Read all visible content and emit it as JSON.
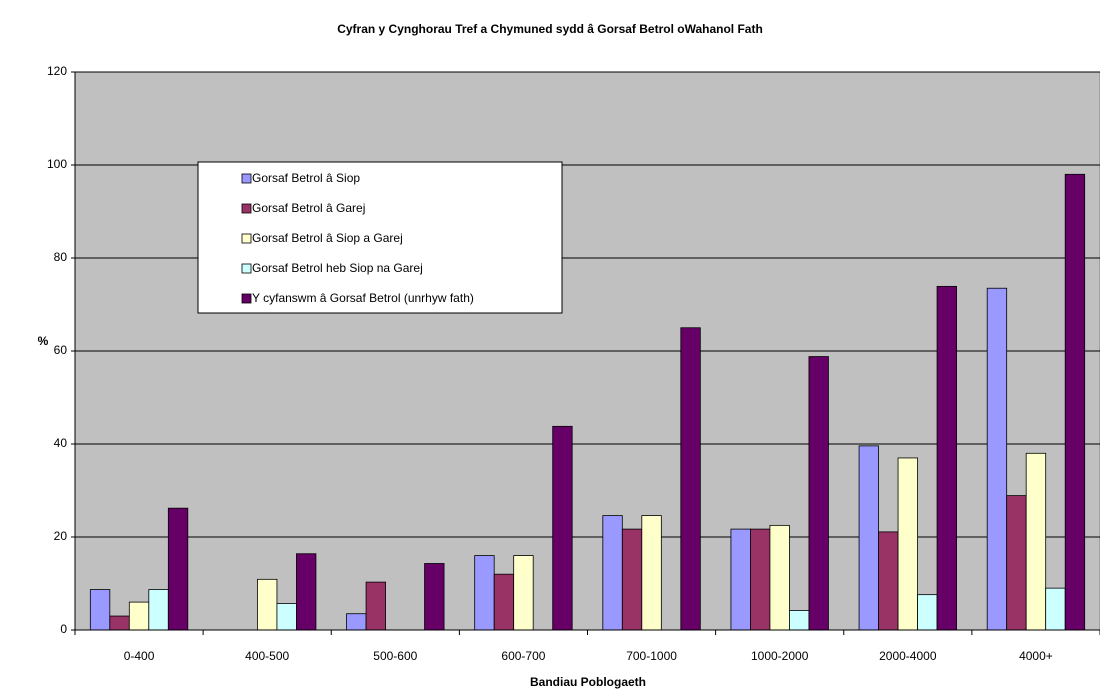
{
  "chart_data": {
    "type": "bar",
    "title": "Cyfran y Cynghorau Tref a Chymuned sydd â Gorsaf Betrol oWahanol Fath",
    "x_label": "Bandiau Poblogaeth",
    "y_label": "%",
    "categories": [
      "0-400",
      "400-500",
      "500-600",
      "600-700",
      "700-1000",
      "1000-2000",
      "2000-4000",
      "4000+"
    ],
    "series": [
      {
        "name": "Gorsaf Betrol â Siop",
        "color": "#9999ff",
        "values": [
          8.7,
          0,
          3.5,
          16,
          24.6,
          21.7,
          39.6,
          73.5
        ]
      },
      {
        "name": "Gorsaf Betrol â Garej",
        "color": "#993366",
        "values": [
          3,
          0,
          10.3,
          12,
          21.7,
          21.7,
          21.1,
          28.9
        ]
      },
      {
        "name": "Gorsaf Betrol â Siop a Garej",
        "color": "#ffffcc",
        "values": [
          6,
          10.9,
          0,
          16,
          24.6,
          22.5,
          37,
          38
        ]
      },
      {
        "name": "Gorsaf Betrol heb Siop na Garej",
        "color": "#ccffff",
        "values": [
          8.7,
          5.7,
          0,
          0,
          0,
          4.2,
          7.6,
          9
        ]
      },
      {
        "name": "Y cyfanswm â Gorsaf Betrol (unrhyw fath)",
        "color": "#660066",
        "values": [
          26.2,
          16.4,
          14.3,
          43.8,
          65,
          58.8,
          73.9,
          98
        ]
      }
    ],
    "ylim": [
      0,
      120
    ],
    "yticks": [
      0,
      20,
      40,
      60,
      80,
      100,
      120
    ],
    "grid": true,
    "plot_background": "#c0c0c0"
  }
}
